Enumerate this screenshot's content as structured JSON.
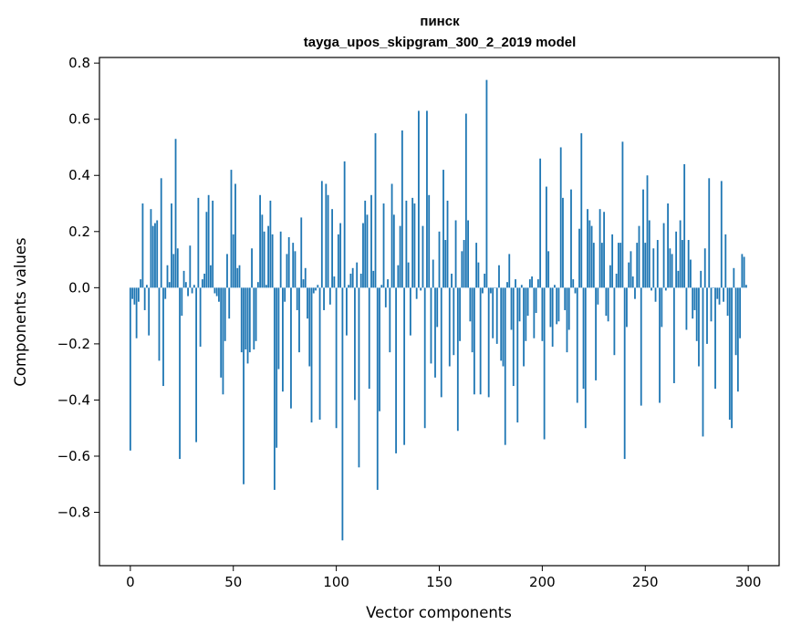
{
  "chart_data": {
    "type": "bar",
    "title": "пинск",
    "subtitle": "tayga_upos_skipgram_300_2_2019 model",
    "xlabel": "Vector components",
    "ylabel": "Components values",
    "xlim": [
      -15,
      315
    ],
    "ylim": [
      -0.99,
      0.82
    ],
    "xticks": [
      0,
      50,
      100,
      150,
      200,
      250,
      300
    ],
    "xtick_labels": [
      "0",
      "50",
      "100",
      "150",
      "200",
      "250",
      "300"
    ],
    "yticks": [
      -0.8,
      -0.6,
      -0.4,
      -0.2,
      0.0,
      0.2,
      0.4,
      0.6,
      0.8
    ],
    "ytick_labels": [
      "−0.8",
      "−0.6",
      "−0.4",
      "−0.2",
      "0.0",
      "0.2",
      "0.4",
      "0.6",
      "0.8"
    ],
    "bar_color": "#1f77b4",
    "grid": false,
    "values": [
      -0.58,
      -0.04,
      -0.06,
      -0.18,
      -0.05,
      0.03,
      0.3,
      -0.08,
      0.01,
      -0.17,
      0.28,
      0.22,
      0.23,
      0.24,
      -0.26,
      0.39,
      -0.35,
      -0.04,
      0.08,
      0.02,
      0.3,
      0.12,
      0.53,
      0.14,
      -0.61,
      -0.1,
      0.06,
      0.02,
      -0.03,
      0.15,
      -0.02,
      0.01,
      -0.55,
      0.32,
      -0.21,
      0.03,
      0.05,
      0.27,
      0.33,
      0.08,
      0.31,
      -0.02,
      -0.03,
      -0.05,
      -0.32,
      -0.38,
      -0.19,
      0.12,
      -0.11,
      0.42,
      0.19,
      0.37,
      0.07,
      0.08,
      -0.23,
      -0.7,
      -0.22,
      -0.27,
      -0.23,
      0.14,
      -0.22,
      -0.19,
      0.02,
      0.33,
      0.26,
      0.2,
      0.01,
      0.22,
      0.31,
      0.19,
      -0.72,
      -0.57,
      -0.29,
      0.2,
      -0.37,
      -0.05,
      0.12,
      0.18,
      -0.43,
      0.16,
      0.13,
      -0.08,
      -0.23,
      0.25,
      0.03,
      0.07,
      -0.11,
      -0.28,
      -0.48,
      -0.02,
      -0.01,
      0.01,
      -0.47,
      0.38,
      -0.08,
      0.37,
      0.33,
      -0.06,
      0.28,
      0.04,
      -0.5,
      0.19,
      0.23,
      -0.9,
      0.45,
      -0.17,
      0.01,
      0.05,
      0.07,
      -0.4,
      0.09,
      -0.64,
      0.05,
      0.23,
      0.31,
      0.26,
      -0.36,
      0.33,
      0.06,
      0.55,
      -0.72,
      -0.44,
      0.01,
      0.3,
      -0.07,
      0.03,
      -0.23,
      0.37,
      0.26,
      -0.59,
      0.08,
      0.22,
      0.56,
      -0.56,
      0.31,
      0.09,
      -0.17,
      0.32,
      0.3,
      -0.04,
      0.63,
      -0.01,
      0.22,
      -0.5,
      0.63,
      0.33,
      -0.27,
      0.1,
      -0.32,
      -0.14,
      0.2,
      -0.39,
      0.42,
      0.17,
      0.31,
      -0.28,
      0.05,
      -0.24,
      0.24,
      -0.51,
      -0.19,
      0.13,
      0.17,
      0.62,
      0.24,
      -0.12,
      -0.23,
      -0.38,
      0.16,
      0.09,
      -0.38,
      -0.02,
      0.05,
      0.74,
      -0.39,
      -0.02,
      -0.18,
      0.0,
      -0.2,
      0.08,
      -0.26,
      -0.28,
      -0.56,
      0.02,
      0.12,
      -0.15,
      -0.35,
      0.03,
      -0.48,
      -0.12,
      0.01,
      -0.28,
      -0.19,
      -0.1,
      0.03,
      0.04,
      -0.18,
      -0.09,
      0.03,
      0.46,
      -0.19,
      -0.54,
      0.36,
      0.13,
      -0.14,
      -0.21,
      0.01,
      -0.13,
      -0.12,
      0.5,
      0.32,
      -0.08,
      -0.23,
      -0.15,
      0.35,
      0.03,
      -0.02,
      -0.41,
      0.21,
      0.55,
      -0.36,
      -0.5,
      0.28,
      0.24,
      0.22,
      0.16,
      -0.33,
      -0.06,
      0.28,
      0.16,
      0.27,
      -0.1,
      -0.12,
      0.08,
      0.19,
      -0.24,
      0.05,
      0.16,
      0.16,
      0.52,
      -0.61,
      -0.14,
      0.09,
      0.13,
      0.04,
      -0.04,
      0.16,
      0.22,
      -0.42,
      0.35,
      0.16,
      0.4,
      0.24,
      -0.01,
      0.14,
      -0.05,
      0.17,
      -0.41,
      -0.14,
      0.23,
      -0.01,
      0.3,
      0.14,
      0.12,
      -0.34,
      0.2,
      0.06,
      0.24,
      0.17,
      0.44,
      -0.15,
      0.17,
      0.1,
      -0.11,
      -0.08,
      -0.19,
      -0.28,
      0.06,
      -0.53,
      0.14,
      -0.2,
      0.39,
      -0.12,
      0.0,
      -0.36,
      -0.04,
      -0.06,
      0.38,
      -0.05,
      0.19,
      -0.1,
      -0.47,
      -0.5,
      0.07,
      -0.24,
      -0.37,
      -0.18,
      0.12,
      0.11,
      0.01
    ]
  }
}
